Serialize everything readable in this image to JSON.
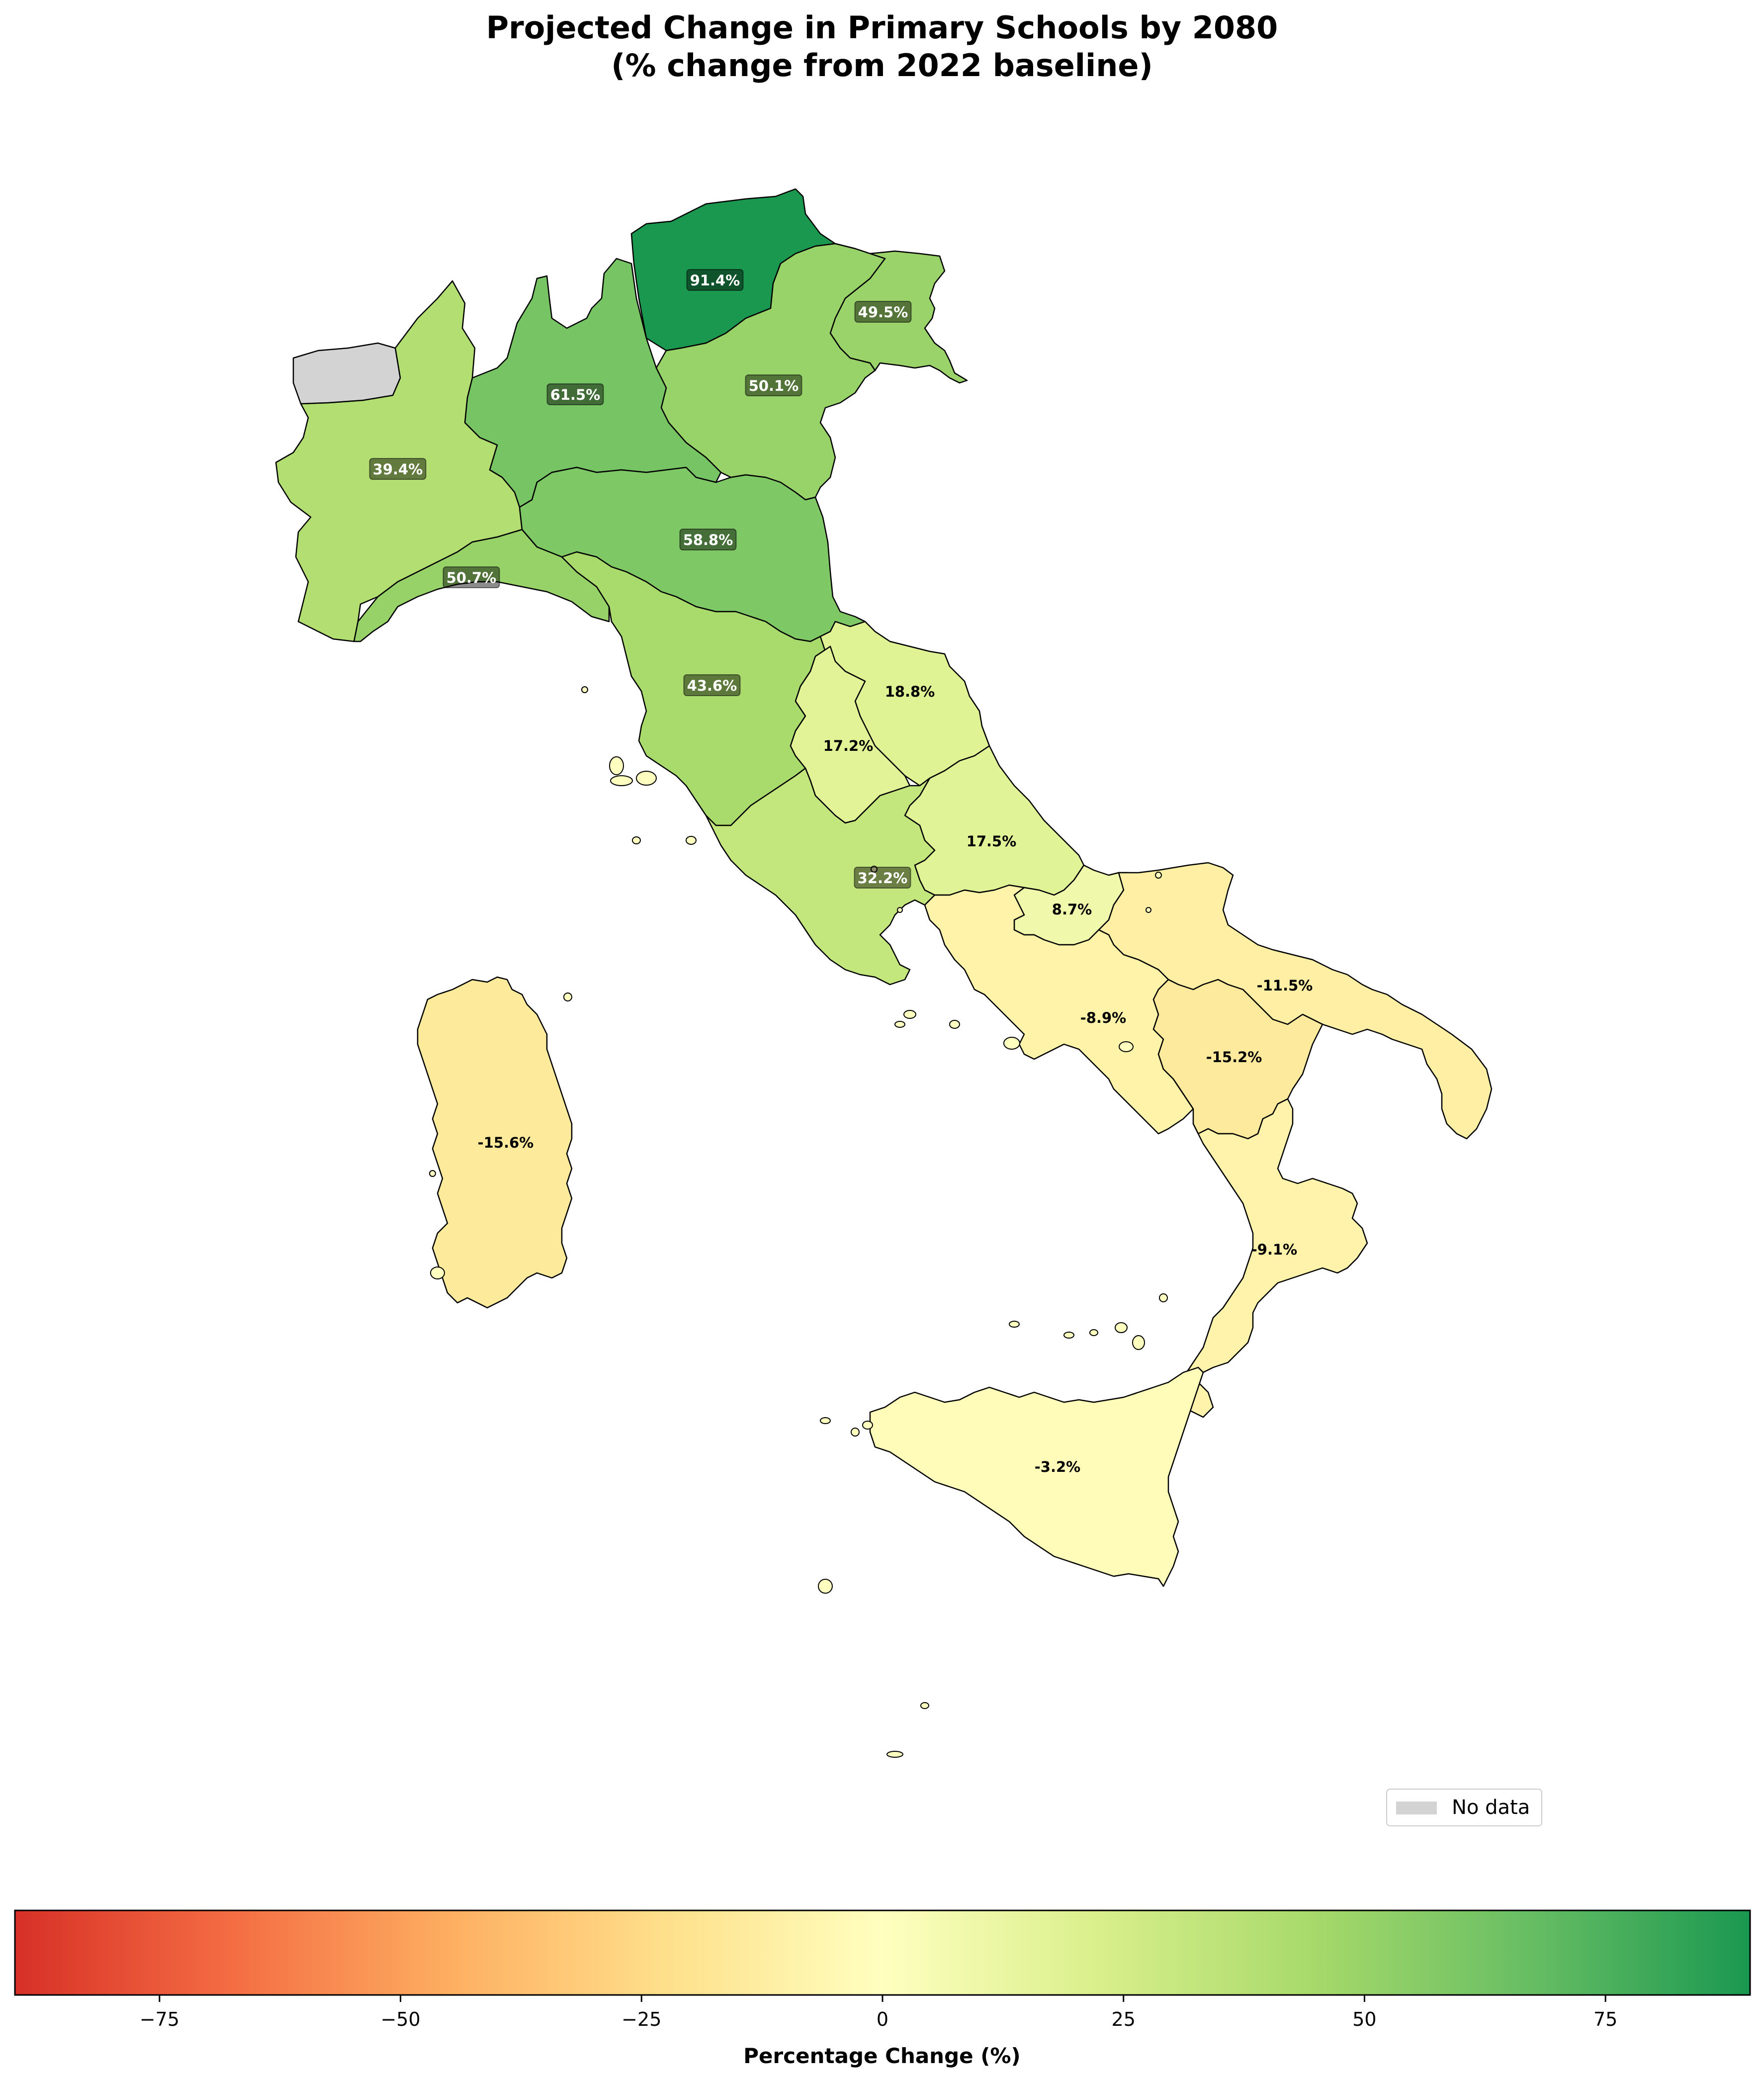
{
  "title": {
    "line1": "Projected Change in Primary Schools by 2080",
    "line2": "(% change from 2022 baseline)"
  },
  "colormap": {
    "name": "RdYlGn",
    "vmin": -90,
    "vmax": 90,
    "stops": [
      "#d73027",
      "#f46d43",
      "#fdae61",
      "#fee08b",
      "#ffffbf",
      "#d9ef8b",
      "#a6d96a",
      "#66bd63",
      "#1a9850"
    ]
  },
  "no_data_color": "#d3d3d3",
  "legend": {
    "no_data_label": "No data"
  },
  "colorbar": {
    "label": "Percentage Change (%)",
    "ticks": [
      -75,
      -50,
      -25,
      0,
      25,
      50,
      75
    ],
    "tick_labels": [
      "−75",
      "−50",
      "−25",
      "0",
      "25",
      "50",
      "75"
    ]
  },
  "chart_data": {
    "type": "choropleth",
    "title": "Projected Change in Primary Schools by 2080 (% change from 2022 baseline)",
    "colorbar_label": "Percentage Change (%)",
    "value_range": [
      -90,
      90
    ],
    "regions": [
      {
        "key": "trentino",
        "value": 91.4,
        "label": "91.4%"
      },
      {
        "key": "friuli",
        "value": 49.5,
        "label": "49.5%"
      },
      {
        "key": "veneto",
        "value": 50.1,
        "label": "50.1%"
      },
      {
        "key": "lombardia",
        "value": 61.5,
        "label": "61.5%"
      },
      {
        "key": "piemonte",
        "value": 39.4,
        "label": "39.4%"
      },
      {
        "key": "emilia",
        "value": 58.8,
        "label": "58.8%"
      },
      {
        "key": "liguria",
        "value": 50.7,
        "label": "50.7%"
      },
      {
        "key": "toscana",
        "value": 43.6,
        "label": "43.6%"
      },
      {
        "key": "marche",
        "value": 18.8,
        "label": "18.8%"
      },
      {
        "key": "umbria",
        "value": 17.2,
        "label": "17.2%"
      },
      {
        "key": "abruzzo",
        "value": 17.5,
        "label": "17.5%"
      },
      {
        "key": "lazio",
        "value": 32.2,
        "label": "32.2%"
      },
      {
        "key": "molise",
        "value": 8.7,
        "label": "8.7%"
      },
      {
        "key": "puglia",
        "value": -11.5,
        "label": "-11.5%"
      },
      {
        "key": "campania",
        "value": -8.9,
        "label": "-8.9%"
      },
      {
        "key": "basilicata",
        "value": -15.2,
        "label": "-15.2%"
      },
      {
        "key": "calabria",
        "value": -9.1,
        "label": "-9.1%"
      },
      {
        "key": "sicilia",
        "value": -3.2,
        "label": "-3.2%"
      },
      {
        "key": "sardegna",
        "value": -15.6,
        "label": "-15.6%"
      },
      {
        "key": "valle_daosta",
        "value": null,
        "label": ""
      }
    ]
  }
}
